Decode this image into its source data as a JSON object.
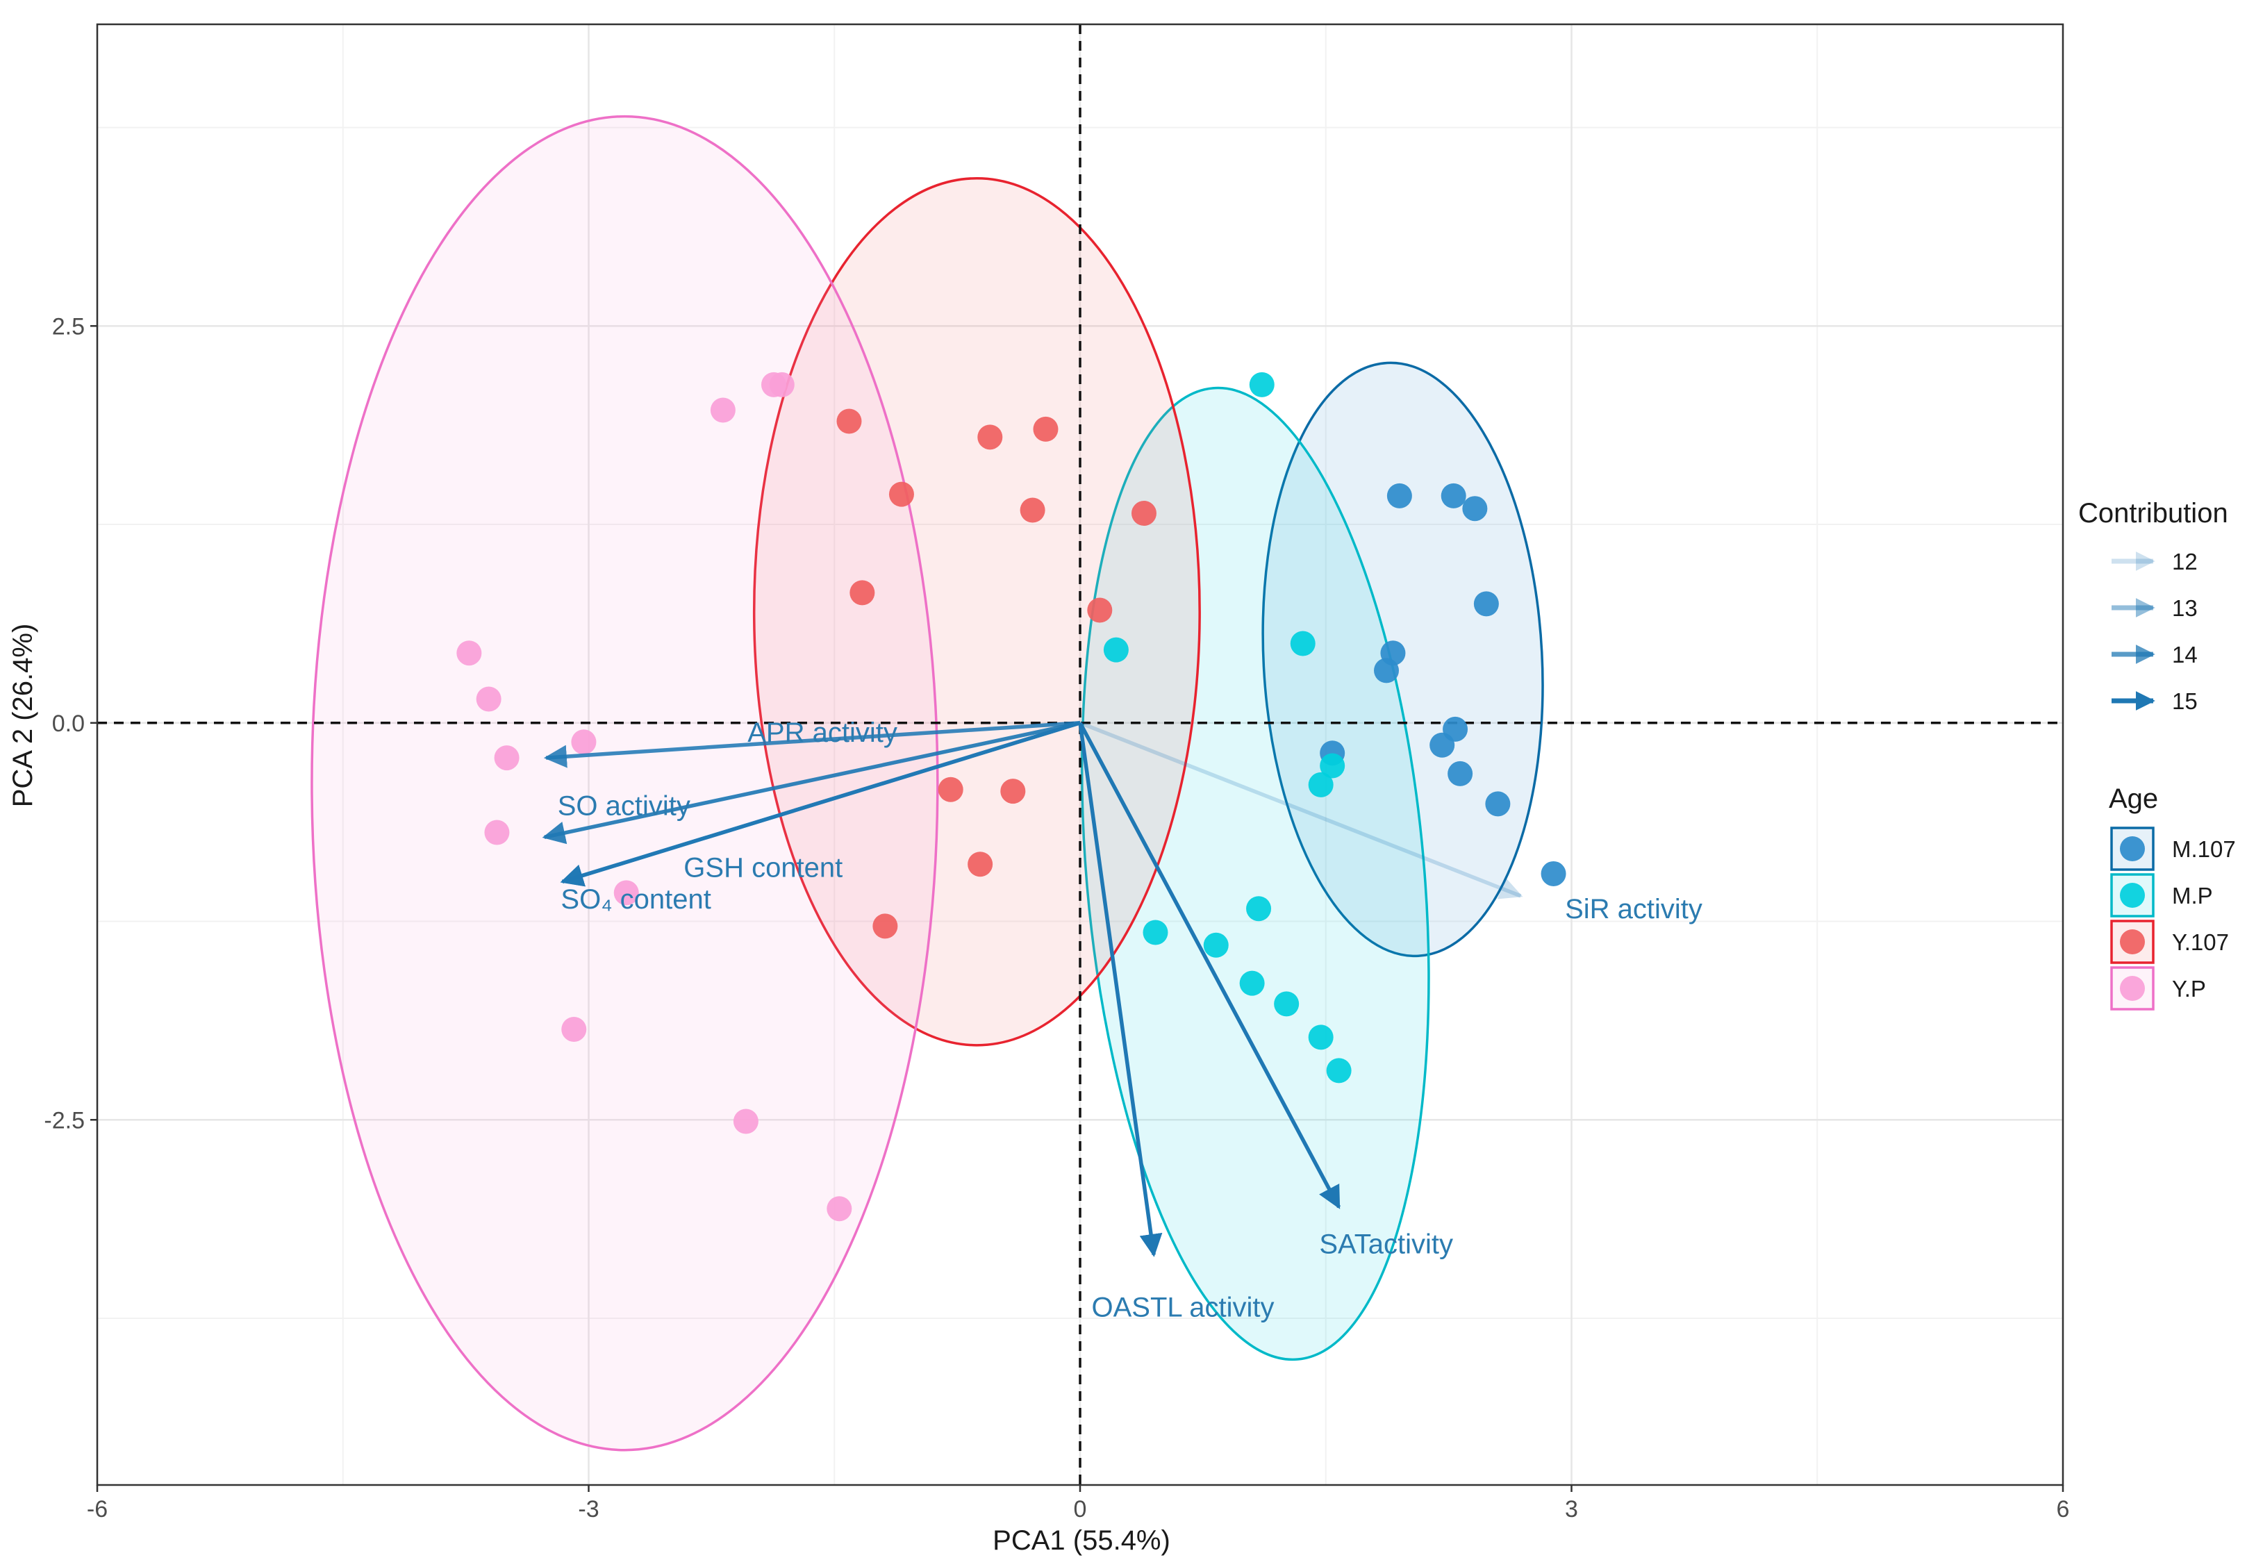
{
  "chart_data": {
    "type": "scatter",
    "subtype": "pca-biplot",
    "xlabel": "PCA1 (55.4%)",
    "ylabel": "PCA 2 (26.4%)",
    "xlim": [
      -6,
      6
    ],
    "ylim": [
      -4.8,
      4.4
    ],
    "x_ticks": [
      -6,
      -3,
      0,
      3,
      6
    ],
    "x_tick_labels": [
      "-6",
      "-3",
      "0",
      "3",
      "6"
    ],
    "y_ticks": [
      -2.5,
      0,
      2.5
    ],
    "y_tick_labels": [
      "-2.5",
      "0.0",
      "2.5"
    ],
    "grid": true,
    "reference_lines": {
      "x": 0,
      "y": 0,
      "style": "dashed"
    },
    "legend_position": "right",
    "series": [
      {
        "name": "M.107",
        "color": "#2e8ccc",
        "stroke": "#0b6ba6",
        "ellipse": {
          "cx": 1.97,
          "cy": 0.4,
          "rx": 0.85,
          "ry": 1.87,
          "angle_deg": -3
        },
        "points": [
          [
            1.95,
            1.43
          ],
          [
            2.28,
            1.43
          ],
          [
            2.41,
            1.35
          ],
          [
            2.48,
            0.75
          ],
          [
            1.91,
            0.44
          ],
          [
            1.87,
            0.33
          ],
          [
            1.54,
            -0.19
          ],
          [
            2.21,
            -0.14
          ],
          [
            2.29,
            -0.04
          ],
          [
            2.32,
            -0.32
          ],
          [
            2.55,
            -0.51
          ],
          [
            2.89,
            -0.95
          ]
        ]
      },
      {
        "name": "M.P",
        "color": "#00cfdd",
        "stroke": "#00b9c8",
        "ellipse": {
          "cx": 1.07,
          "cy": -0.95,
          "rx": 1.03,
          "ry": 3.07,
          "angle_deg": -5
        },
        "points": [
          [
            1.11,
            2.13
          ],
          [
            0.22,
            0.46
          ],
          [
            1.36,
            0.5
          ],
          [
            1.54,
            -0.27
          ],
          [
            1.47,
            -0.39
          ],
          [
            1.09,
            -1.17
          ],
          [
            0.46,
            -1.32
          ],
          [
            0.83,
            -1.4
          ],
          [
            1.05,
            -1.64
          ],
          [
            1.26,
            -1.77
          ],
          [
            1.47,
            -1.98
          ],
          [
            1.58,
            -2.19
          ]
        ]
      },
      {
        "name": "Y.107",
        "color": "#f06060",
        "stroke": "#e8232f",
        "ellipse": {
          "cx": -0.63,
          "cy": 0.7,
          "rx": 1.36,
          "ry": 2.73,
          "angle_deg": 0
        },
        "points": [
          [
            -1.41,
            1.9
          ],
          [
            -0.55,
            1.8
          ],
          [
            -0.21,
            1.85
          ],
          [
            -1.09,
            1.44
          ],
          [
            -0.29,
            1.34
          ],
          [
            0.39,
            1.32
          ],
          [
            -1.33,
            0.82
          ],
          [
            0.12,
            0.71
          ],
          [
            -0.79,
            -0.42
          ],
          [
            -0.41,
            -0.43
          ],
          [
            -0.61,
            -0.89
          ],
          [
            -1.19,
            -1.28
          ]
        ]
      },
      {
        "name": "Y.P",
        "color": "#fa9fd8",
        "stroke": "#ee70c7",
        "ellipse": {
          "cx": -2.78,
          "cy": -0.38,
          "rx": 1.91,
          "ry": 4.2,
          "angle_deg": 0
        },
        "points": [
          [
            -1.87,
            2.13
          ],
          [
            -1.82,
            2.13
          ],
          [
            -2.18,
            1.97
          ],
          [
            -3.73,
            0.44
          ],
          [
            -3.61,
            0.15
          ],
          [
            -3.03,
            -0.12
          ],
          [
            -3.5,
            -0.22
          ],
          [
            -3.56,
            -0.69
          ],
          [
            -2.77,
            -1.07
          ],
          [
            -3.09,
            -1.93
          ],
          [
            -2.04,
            -2.51
          ],
          [
            -1.47,
            -3.06
          ]
        ]
      }
    ],
    "arrows": [
      {
        "label": "APR activity",
        "x": -3.26,
        "y": -0.22,
        "contribution": 14.5
      },
      {
        "label": "SO activity",
        "x": -3.27,
        "y": -0.72,
        "contribution": 14.7
      },
      {
        "label": "SO₄ content",
        "x": -3.16,
        "y": -1.0,
        "contribution": 14.8
      },
      {
        "label": "GSH content",
        "x": -3.16,
        "y": -1.0,
        "contribution": 14.2
      },
      {
        "label": "SiR activity",
        "x": 2.69,
        "y": -1.09,
        "contribution": 12.0
      },
      {
        "label": "SATactivity",
        "x": 1.58,
        "y": -3.05,
        "contribution": 15.0
      },
      {
        "label": "OASTL activity",
        "x": 0.45,
        "y": -3.35,
        "contribution": 15.0
      }
    ],
    "legends": {
      "contribution": {
        "title": "Contribution",
        "items": [
          {
            "label": "12",
            "value": 12
          },
          {
            "label": "13",
            "value": 13
          },
          {
            "label": "14",
            "value": 14
          },
          {
            "label": "15",
            "value": 15
          }
        ]
      },
      "age": {
        "title": "Age",
        "items": [
          "M.107",
          "M.P",
          "Y.107",
          "Y.P"
        ]
      }
    }
  }
}
